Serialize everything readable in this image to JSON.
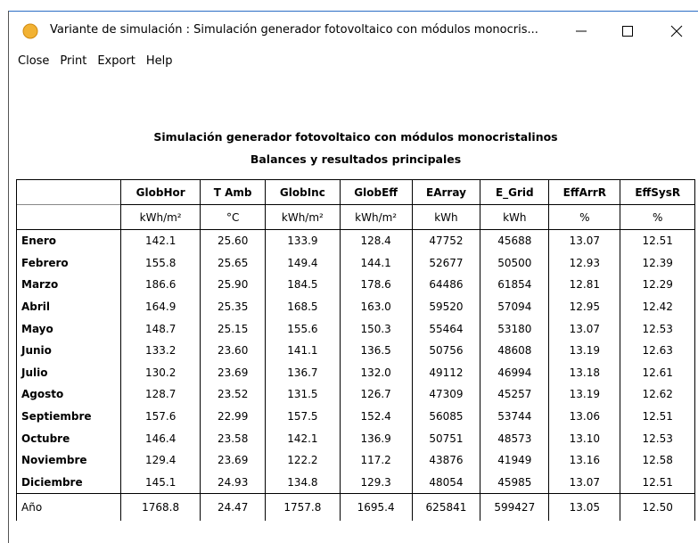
{
  "window": {
    "title": "Variante de simulación :  Simulación generador fotovoltaico con módulos monocris...",
    "menu": [
      "Close",
      "Print",
      "Export",
      "Help"
    ]
  },
  "report": {
    "title": "Simulación generador fotovoltaico con módulos monocristalinos",
    "subtitle": "Balances y resultados principales"
  },
  "table": {
    "headers": [
      "GlobHor",
      "T Amb",
      "GlobInc",
      "GlobEff",
      "EArray",
      "E_Grid",
      "EffArrR",
      "EffSysR"
    ],
    "units": [
      "kWh/m²",
      "°C",
      "kWh/m²",
      "kWh/m²",
      "kWh",
      "kWh",
      "%",
      "%"
    ],
    "rows": [
      [
        "Enero",
        "142.1",
        "25.60",
        "133.9",
        "128.4",
        "47752",
        "45688",
        "13.07",
        "12.51"
      ],
      [
        "Febrero",
        "155.8",
        "25.65",
        "149.4",
        "144.1",
        "52677",
        "50500",
        "12.93",
        "12.39"
      ],
      [
        "Marzo",
        "186.6",
        "25.90",
        "184.5",
        "178.6",
        "64486",
        "61854",
        "12.81",
        "12.29"
      ],
      [
        "Abril",
        "164.9",
        "25.35",
        "168.5",
        "163.0",
        "59520",
        "57094",
        "12.95",
        "12.42"
      ],
      [
        "Mayo",
        "148.7",
        "25.15",
        "155.6",
        "150.3",
        "55464",
        "53180",
        "13.07",
        "12.53"
      ],
      [
        "Junio",
        "133.2",
        "23.60",
        "141.1",
        "136.5",
        "50756",
        "48608",
        "13.19",
        "12.63"
      ],
      [
        "Julio",
        "130.2",
        "23.69",
        "136.7",
        "132.0",
        "49112",
        "46994",
        "13.18",
        "12.61"
      ],
      [
        "Agosto",
        "128.7",
        "23.52",
        "131.5",
        "126.7",
        "47309",
        "45257",
        "13.19",
        "12.62"
      ],
      [
        "Septiembre",
        "157.6",
        "22.99",
        "157.5",
        "152.4",
        "56085",
        "53744",
        "13.06",
        "12.51"
      ],
      [
        "Octubre",
        "146.4",
        "23.58",
        "142.1",
        "136.9",
        "50751",
        "48573",
        "13.10",
        "12.53"
      ],
      [
        "Noviembre",
        "129.4",
        "23.69",
        "122.2",
        "117.2",
        "43876",
        "41949",
        "13.16",
        "12.58"
      ],
      [
        "Diciembre",
        "145.1",
        "24.93",
        "134.8",
        "129.3",
        "48054",
        "45985",
        "13.07",
        "12.51"
      ]
    ],
    "total": [
      "Año",
      "1768.8",
      "24.47",
      "1757.8",
      "1695.4",
      "625841",
      "599427",
      "13.05",
      "12.50"
    ]
  }
}
